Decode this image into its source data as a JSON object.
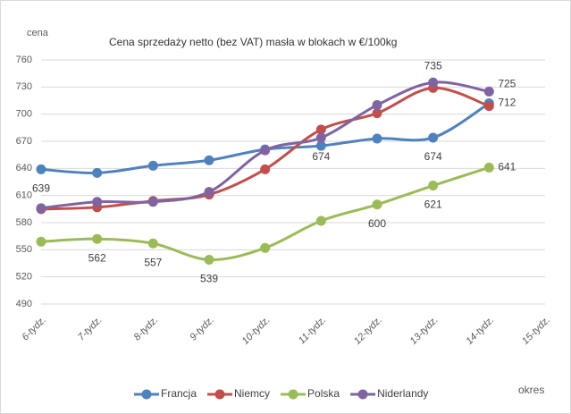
{
  "chart_data": {
    "type": "line",
    "title": "Cena sprzedaży netto (bez VAT) masła w blokach w €/100kg",
    "y_label": "cena",
    "x_label": "okres",
    "categories": [
      "6-tydz.",
      "7-tydz.",
      "8-tydz.",
      "9-tydz.",
      "10-tydz.",
      "11-tydz.",
      "12-tydz.",
      "13-tydz.",
      "14-tydz.",
      "15-tydz."
    ],
    "ylim": [
      490,
      760
    ],
    "yticks": [
      490,
      520,
      550,
      580,
      610,
      640,
      670,
      700,
      730,
      760
    ],
    "grid": true,
    "legend": "bottom",
    "series": [
      {
        "name": "Francja",
        "color": "#4f81bd",
        "values": [
          639,
          635,
          643,
          649,
          661,
          665,
          673,
          674,
          712,
          null
        ],
        "value_labels": [
          "639",
          null,
          null,
          null,
          null,
          null,
          null,
          "674",
          "712",
          null
        ]
      },
      {
        "name": "Niemcy",
        "color": "#c0504d",
        "values": [
          595,
          597,
          604,
          611,
          639,
          683,
          701,
          729,
          709,
          null
        ],
        "value_labels": [
          null,
          null,
          null,
          null,
          null,
          null,
          null,
          null,
          null,
          null
        ]
      },
      {
        "name": "Polska",
        "color": "#9bbb59",
        "values": [
          559,
          562,
          557,
          539,
          552,
          582,
          600,
          621,
          641,
          null
        ],
        "value_labels": [
          null,
          "562",
          "557",
          "539",
          null,
          null,
          "600",
          "621",
          "641",
          null
        ]
      },
      {
        "name": "Niderlandy",
        "color": "#8064a2",
        "values": [
          596,
          603,
          603,
          614,
          660,
          674,
          710,
          735,
          725,
          null
        ],
        "value_labels": [
          null,
          null,
          null,
          null,
          null,
          "674",
          null,
          "735",
          "725",
          null
        ]
      }
    ]
  }
}
